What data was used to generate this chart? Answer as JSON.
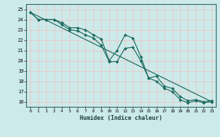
{
  "xlabel": "Humidex (Indice chaleur)",
  "bg_color": "#cceaea",
  "grid_color": "#e8c8c8",
  "line_color": "#1e6b60",
  "xlim": [
    -0.5,
    23.5
  ],
  "ylim": [
    15.5,
    25.5
  ],
  "xticks": [
    0,
    1,
    2,
    3,
    4,
    5,
    6,
    7,
    8,
    9,
    10,
    11,
    12,
    13,
    14,
    15,
    16,
    17,
    18,
    19,
    20,
    21,
    22,
    23
  ],
  "yticks": [
    16,
    17,
    18,
    19,
    20,
    21,
    22,
    23,
    24,
    25
  ],
  "line1_x": [
    0,
    1,
    2,
    3,
    4,
    5,
    6,
    7,
    8,
    9,
    10,
    11,
    12,
    13,
    14,
    15,
    16,
    17,
    18,
    19,
    20,
    21,
    22,
    23
  ],
  "line1_y": [
    24.7,
    24.0,
    24.0,
    24.0,
    23.7,
    23.2,
    23.2,
    23.0,
    22.5,
    22.1,
    20.0,
    21.0,
    22.5,
    22.2,
    20.4,
    18.3,
    18.5,
    17.5,
    17.3,
    16.5,
    16.1,
    16.2,
    16.0,
    16.1
  ],
  "line2_x": [
    0,
    1,
    2,
    3,
    4,
    5,
    6,
    7,
    8,
    9,
    10,
    11,
    12,
    13,
    14,
    15,
    16,
    17,
    18,
    19,
    20,
    21,
    22,
    23
  ],
  "line2_y": [
    24.7,
    24.0,
    24.0,
    24.0,
    23.5,
    23.0,
    22.9,
    22.5,
    22.2,
    21.5,
    19.9,
    19.9,
    21.2,
    21.3,
    20.0,
    18.3,
    18.0,
    17.3,
    17.0,
    16.2,
    15.9,
    16.1,
    15.9,
    16.0
  ],
  "line3_x": [
    0,
    23
  ],
  "line3_y": [
    24.7,
    16.0
  ]
}
